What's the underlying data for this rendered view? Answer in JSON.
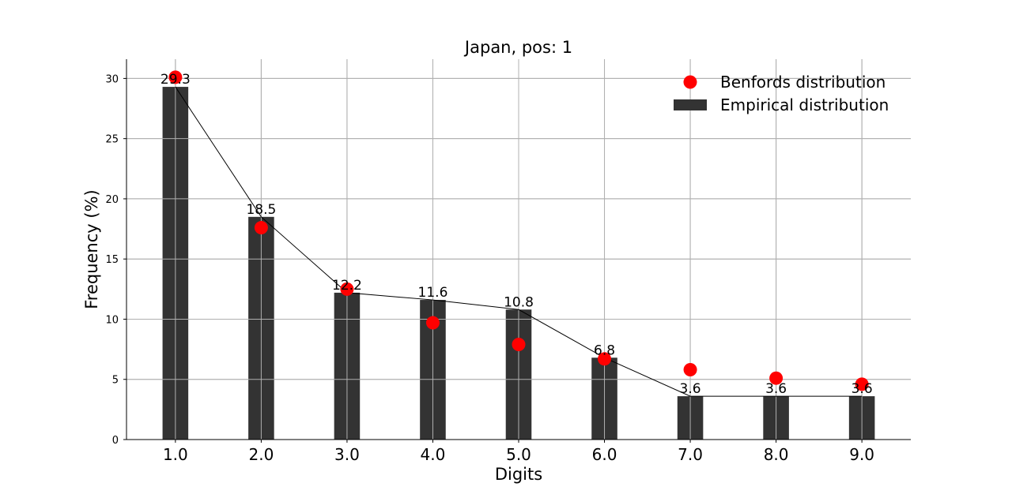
{
  "chart_data": {
    "type": "bar",
    "title": "Japan, pos: 1",
    "xlabel": "Digits",
    "ylabel": "Frequency (%)",
    "categories": [
      "1.0",
      "2.0",
      "3.0",
      "4.0",
      "5.0",
      "6.0",
      "7.0",
      "8.0",
      "9.0"
    ],
    "x": [
      1,
      2,
      3,
      4,
      5,
      6,
      7,
      8,
      9
    ],
    "xlim": [
      0.43,
      9.57
    ],
    "ylim": [
      0,
      31.6
    ],
    "yticks": [
      0,
      5,
      10,
      15,
      20,
      25,
      30
    ],
    "grid": true,
    "legend_position": "top-right",
    "series": [
      {
        "name": "Empirical distribution",
        "kind": "bar",
        "color": "#333333",
        "values": [
          29.3,
          18.5,
          12.2,
          11.6,
          10.8,
          6.8,
          3.6,
          3.6,
          3.6
        ],
        "data_labels": [
          "29.3",
          "18.5",
          "12.2",
          "11.6",
          "10.8",
          "6.8",
          "3.6",
          "3.6",
          "3.6"
        ]
      },
      {
        "name": "Benfords distribution",
        "kind": "scatter",
        "color": "#ff0000",
        "values": [
          30.1,
          17.6,
          12.5,
          9.7,
          7.9,
          6.7,
          5.8,
          5.1,
          4.6
        ]
      }
    ],
    "connector_line_color": "#000000"
  }
}
